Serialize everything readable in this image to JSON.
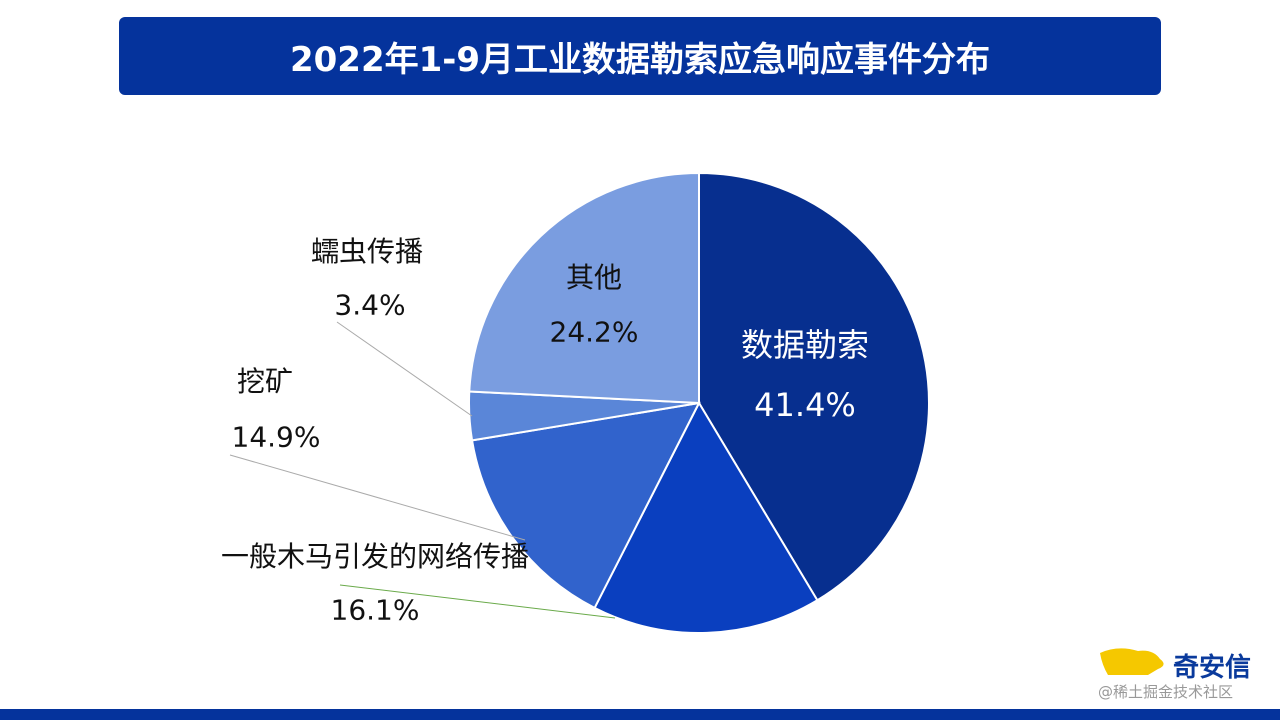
{
  "chart_data": {
    "type": "pie",
    "title": "2022年1-9月工业数据勒索应急响应事件分布",
    "slices": [
      {
        "label": "数据勒索",
        "value": 41.4,
        "display": "41.4%",
        "color": "#072f8f"
      },
      {
        "label": "一般木马引发的网络传播",
        "value": 16.1,
        "display": "16.1%",
        "color": "#0a3fbf"
      },
      {
        "label": "挖矿",
        "value": 14.9,
        "display": "14.9%",
        "color": "#3163cc"
      },
      {
        "label": "蠕虫传播",
        "value": 3.4,
        "display": "3.4%",
        "color": "#5a86d8"
      },
      {
        "label": "其他",
        "value": 24.2,
        "display": "24.2%",
        "color": "#7a9de0"
      }
    ],
    "start": "top",
    "direction": "clockwise"
  },
  "logo": {
    "text": "奇安信",
    "watermark": "@稀土掘金技术社区"
  }
}
